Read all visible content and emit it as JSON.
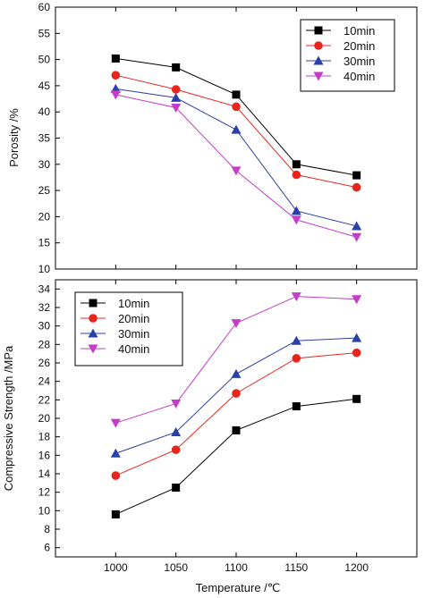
{
  "chart_data": [
    {
      "type": "line",
      "title": "",
      "xlabel": "",
      "ylabel": "Porosity /%",
      "x": [
        1000,
        1050,
        1100,
        1150,
        1200
      ],
      "xlim": [
        950,
        1250
      ],
      "ylim": [
        10,
        60
      ],
      "yticks": [
        10,
        15,
        20,
        25,
        30,
        35,
        40,
        45,
        50,
        55,
        60
      ],
      "grid": false,
      "legend_position": "top-right",
      "series": [
        {
          "name": "10min",
          "values": [
            50.2,
            48.5,
            43.3,
            30.0,
            27.9
          ],
          "color": "#000000",
          "marker": "square"
        },
        {
          "name": "20min",
          "values": [
            47.0,
            44.3,
            41.0,
            28.0,
            25.6
          ],
          "color": "#e8251c",
          "marker": "circle"
        },
        {
          "name": "30min",
          "values": [
            44.4,
            42.7,
            36.6,
            21.1,
            18.2
          ],
          "color": "#2b3fa8",
          "marker": "triangle-up"
        },
        {
          "name": "40min",
          "values": [
            43.3,
            40.8,
            28.8,
            19.4,
            16.1
          ],
          "color": "#c43cc7",
          "marker": "triangle-down"
        }
      ]
    },
    {
      "type": "line",
      "title": "",
      "xlabel": "Temperature /℃",
      "ylabel": "Compressive Strength /MPa",
      "x": [
        1000,
        1050,
        1100,
        1150,
        1200
      ],
      "xlim": [
        950,
        1250
      ],
      "ylim": [
        5,
        35
      ],
      "yticks": [
        6,
        8,
        10,
        12,
        14,
        16,
        18,
        20,
        22,
        24,
        26,
        28,
        30,
        32,
        34
      ],
      "xticks": [
        1000,
        1050,
        1100,
        1150,
        1200
      ],
      "grid": false,
      "legend_position": "top-left",
      "series": [
        {
          "name": "10min",
          "values": [
            9.6,
            12.5,
            18.7,
            21.3,
            22.1
          ],
          "color": "#000000",
          "marker": "square"
        },
        {
          "name": "20min",
          "values": [
            13.8,
            16.6,
            22.7,
            26.5,
            27.1
          ],
          "color": "#e8251c",
          "marker": "circle"
        },
        {
          "name": "30min",
          "values": [
            16.2,
            18.5,
            24.8,
            28.4,
            28.7
          ],
          "color": "#2b3fa8",
          "marker": "triangle-up"
        },
        {
          "name": "40min",
          "values": [
            19.5,
            21.6,
            30.3,
            33.2,
            32.9
          ],
          "color": "#c43cc7",
          "marker": "triangle-down"
        }
      ]
    }
  ]
}
